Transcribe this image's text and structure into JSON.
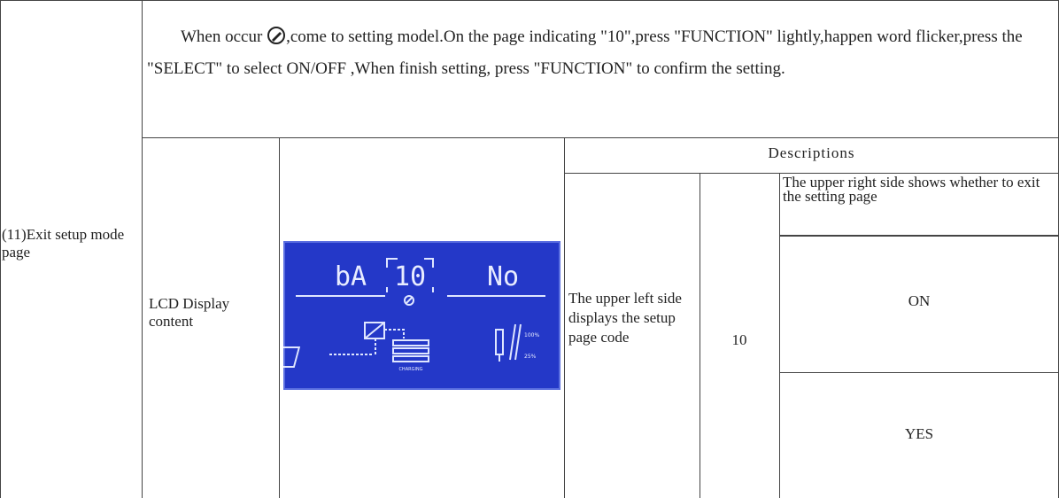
{
  "row_label": "(11)Exit setup mode page",
  "instruction": {
    "before_icon": "When occur",
    "after_icon": ",come to setting model.On the page indicating \"10\",press  \"FUNCTION\" lightly,happen word flicker,press the \"SELECT\" to select ON/OFF ,When finish setting, press \"FUNCTION\" to confirm the setting."
  },
  "table": {
    "label": "LCD Display content",
    "lcd": {
      "left": "bA",
      "code": "10",
      "right": "No",
      "level_high": "100%",
      "level_low": "25%",
      "status": "CHARGING"
    },
    "header": "Descriptions",
    "left_desc": "The upper left side displays the setup page code",
    "code": "10",
    "right_desc": "The upper right side shows whether to exit the setting page",
    "options": [
      "ON",
      "YES"
    ]
  }
}
